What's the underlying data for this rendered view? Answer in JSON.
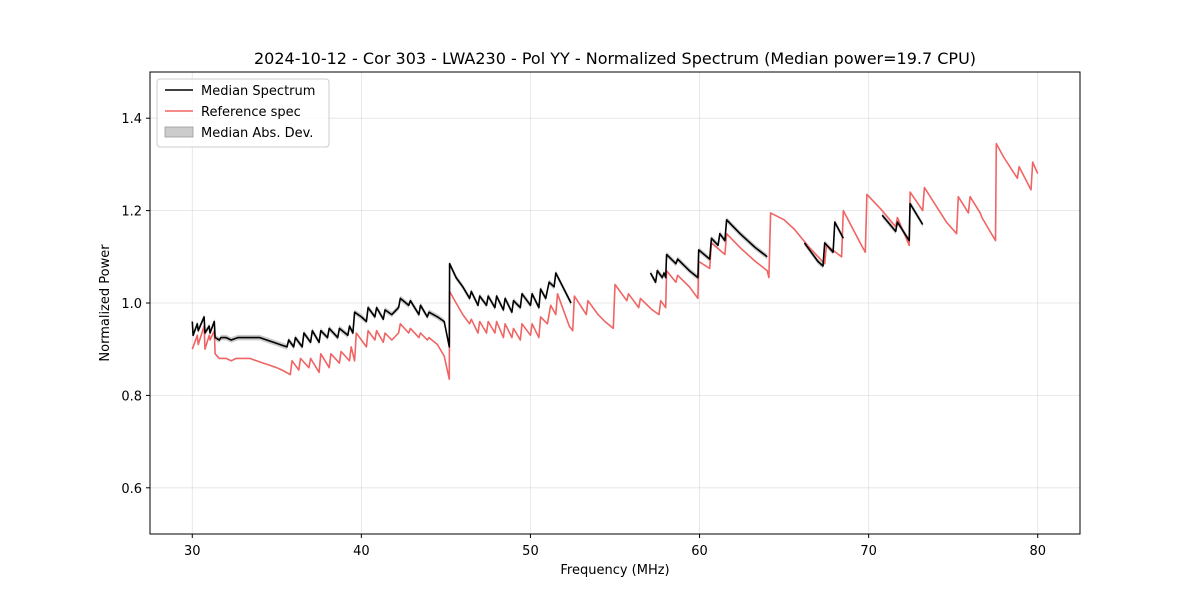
{
  "chart_data": {
    "type": "line",
    "title": "2024-10-12 - Cor 303 - LWA230 - Pol YY - Normalized Spectrum (Median power=19.7 CPU)",
    "xlabel": "Frequency (MHz)",
    "ylabel": "Normalized Power",
    "xlim": [
      27.5,
      82.5
    ],
    "ylim": [
      0.5,
      1.5
    ],
    "xticks": [
      30,
      40,
      50,
      60,
      70,
      80
    ],
    "yticks": [
      0.6,
      0.8,
      1.0,
      1.2,
      1.4
    ],
    "xtick_labels": [
      "30",
      "40",
      "50",
      "60",
      "70",
      "80"
    ],
    "ytick_labels": [
      "0.6",
      "0.8",
      "1.0",
      "1.2",
      "1.4"
    ],
    "grid": true,
    "legend_position": "top-left",
    "legend": [
      {
        "label": "Median Spectrum",
        "kind": "line",
        "color": "#000000"
      },
      {
        "label": "Reference spec",
        "kind": "line",
        "color": "#f06464"
      },
      {
        "label": "Median Abs. Dev.",
        "kind": "patch",
        "color": "#cccccc"
      }
    ],
    "series": [
      {
        "name": "Reference spec",
        "color": "#f06464",
        "segments": [
          [
            [
              30.0,
              0.9
            ],
            [
              30.3,
              0.93
            ],
            [
              30.35,
              0.91
            ],
            [
              30.7,
              0.95
            ],
            [
              30.75,
              0.9
            ],
            [
              31.0,
              0.93
            ],
            [
              31.05,
              0.92
            ],
            [
              31.3,
              0.94
            ],
            [
              31.35,
              0.89
            ],
            [
              31.6,
              0.88
            ],
            [
              31.7,
              0.88
            ],
            [
              32.0,
              0.88
            ],
            [
              32.3,
              0.875
            ],
            [
              32.6,
              0.88
            ],
            [
              33.0,
              0.88
            ],
            [
              33.4,
              0.88
            ],
            [
              33.8,
              0.875
            ],
            [
              34.2,
              0.87
            ],
            [
              34.6,
              0.865
            ],
            [
              35.0,
              0.86
            ],
            [
              35.3,
              0.855
            ],
            [
              35.8,
              0.845
            ],
            [
              35.9,
              0.875
            ],
            [
              36.3,
              0.855
            ],
            [
              36.4,
              0.88
            ],
            [
              36.9,
              0.86
            ],
            [
              37.0,
              0.88
            ],
            [
              37.5,
              0.85
            ],
            [
              37.6,
              0.89
            ],
            [
              38.1,
              0.86
            ],
            [
              38.2,
              0.89
            ],
            [
              38.7,
              0.87
            ],
            [
              38.8,
              0.895
            ],
            [
              39.3,
              0.875
            ],
            [
              39.4,
              0.905
            ],
            [
              39.6,
              0.875
            ],
            [
              39.7,
              0.935
            ],
            [
              40.0,
              0.92
            ],
            [
              40.3,
              0.905
            ],
            [
              40.4,
              0.94
            ],
            [
              40.8,
              0.92
            ],
            [
              40.9,
              0.94
            ],
            [
              41.3,
              0.915
            ],
            [
              41.4,
              0.935
            ],
            [
              41.8,
              0.92
            ],
            [
              42.2,
              0.935
            ],
            [
              42.3,
              0.955
            ],
            [
              42.8,
              0.935
            ],
            [
              42.9,
              0.945
            ],
            [
              43.4,
              0.925
            ],
            [
              43.5,
              0.935
            ],
            [
              43.9,
              0.92
            ],
            [
              44.0,
              0.925
            ],
            [
              44.5,
              0.91
            ],
            [
              44.9,
              0.885
            ],
            [
              45.2,
              0.835
            ],
            [
              45.22,
              1.025
            ],
            [
              45.6,
              1.0
            ],
            [
              46.0,
              0.975
            ],
            [
              46.4,
              0.955
            ],
            [
              46.5,
              0.965
            ],
            [
              46.9,
              0.935
            ],
            [
              47.0,
              0.96
            ],
            [
              47.4,
              0.935
            ],
            [
              47.5,
              0.96
            ],
            [
              47.9,
              0.935
            ],
            [
              48.0,
              0.96
            ],
            [
              48.4,
              0.925
            ],
            [
              48.5,
              0.955
            ],
            [
              48.9,
              0.925
            ],
            [
              49.0,
              0.945
            ],
            [
              49.4,
              0.92
            ],
            [
              49.5,
              0.955
            ],
            [
              50.0,
              0.93
            ],
            [
              50.1,
              0.955
            ],
            [
              50.5,
              0.925
            ],
            [
              50.6,
              0.97
            ],
            [
              51.0,
              0.955
            ],
            [
              51.2,
              0.995
            ],
            [
              51.5,
              0.975
            ],
            [
              51.6,
              1.02
            ],
            [
              52.3,
              0.95
            ],
            [
              52.5,
              0.94
            ],
            [
              52.6,
              1.015
            ],
            [
              53.3,
              0.975
            ],
            [
              53.4,
              1.005
            ],
            [
              54.0,
              0.975
            ],
            [
              54.4,
              0.96
            ],
            [
              54.9,
              0.945
            ],
            [
              55.0,
              1.04
            ],
            [
              55.7,
              1.005
            ],
            [
              55.8,
              1.02
            ],
            [
              56.4,
              0.99
            ],
            [
              56.5,
              1.01
            ],
            [
              57.2,
              0.985
            ],
            [
              57.6,
              0.975
            ],
            [
              57.7,
              1.005
            ],
            [
              58.0,
              0.99
            ],
            [
              58.05,
              1.07
            ],
            [
              58.6,
              1.045
            ],
            [
              58.7,
              1.06
            ],
            [
              59.4,
              1.035
            ],
            [
              59.9,
              1.01
            ],
            [
              59.95,
              1.09
            ],
            [
              60.6,
              1.075
            ],
            [
              60.7,
              1.13
            ],
            [
              61.5,
              1.105
            ],
            [
              61.6,
              1.15
            ],
            [
              62.4,
              1.12
            ],
            [
              63.3,
              1.09
            ],
            [
              64.0,
              1.07
            ],
            [
              64.1,
              1.055
            ],
            [
              64.2,
              1.195
            ],
            [
              65.0,
              1.18
            ],
            [
              65.6,
              1.16
            ],
            [
              66.5,
              1.12
            ],
            [
              67.4,
              1.085
            ],
            [
              67.5,
              1.125
            ],
            [
              68.4,
              1.1
            ],
            [
              68.5,
              1.2
            ],
            [
              69.5,
              1.13
            ],
            [
              69.8,
              1.11
            ],
            [
              69.9,
              1.235
            ],
            [
              70.8,
              1.2
            ],
            [
              71.6,
              1.165
            ],
            [
              71.7,
              1.185
            ],
            [
              72.4,
              1.125
            ],
            [
              72.45,
              1.24
            ],
            [
              73.2,
              1.2
            ],
            [
              73.3,
              1.25
            ],
            [
              74.6,
              1.175
            ],
            [
              75.2,
              1.15
            ],
            [
              75.3,
              1.23
            ],
            [
              75.9,
              1.195
            ],
            [
              76.0,
              1.23
            ],
            [
              76.6,
              1.195
            ],
            [
              76.7,
              1.185
            ],
            [
              77.5,
              1.135
            ],
            [
              77.55,
              1.345
            ],
            [
              78.0,
              1.315
            ],
            [
              78.8,
              1.27
            ],
            [
              78.9,
              1.295
            ],
            [
              79.6,
              1.245
            ],
            [
              79.7,
              1.305
            ],
            [
              80.0,
              1.28
            ]
          ]
        ]
      },
      {
        "name": "Median Spectrum",
        "color": "#000000",
        "segments": [
          [
            [
              30.0,
              0.96
            ],
            [
              30.05,
              0.93
            ],
            [
              30.3,
              0.955
            ],
            [
              30.35,
              0.94
            ],
            [
              30.7,
              0.97
            ],
            [
              30.75,
              0.935
            ],
            [
              31.0,
              0.95
            ],
            [
              31.05,
              0.935
            ],
            [
              31.3,
              0.96
            ],
            [
              31.35,
              0.925
            ],
            [
              31.6,
              0.92
            ],
            [
              31.7,
              0.925
            ],
            [
              32.0,
              0.925
            ],
            [
              32.3,
              0.92
            ],
            [
              32.7,
              0.925
            ],
            [
              33.2,
              0.925
            ],
            [
              33.6,
              0.925
            ],
            [
              34.0,
              0.925
            ],
            [
              34.4,
              0.92
            ],
            [
              34.8,
              0.915
            ],
            [
              35.2,
              0.91
            ],
            [
              35.6,
              0.905
            ],
            [
              35.7,
              0.92
            ],
            [
              36.0,
              0.905
            ],
            [
              36.1,
              0.925
            ],
            [
              36.5,
              0.905
            ],
            [
              36.6,
              0.935
            ],
            [
              37.0,
              0.915
            ],
            [
              37.1,
              0.94
            ],
            [
              37.5,
              0.915
            ],
            [
              37.6,
              0.94
            ],
            [
              38.0,
              0.925
            ],
            [
              38.1,
              0.945
            ],
            [
              38.6,
              0.925
            ],
            [
              38.7,
              0.945
            ],
            [
              39.2,
              0.93
            ],
            [
              39.3,
              0.95
            ],
            [
              39.5,
              0.935
            ],
            [
              39.6,
              0.98
            ],
            [
              40.0,
              0.97
            ],
            [
              40.3,
              0.96
            ],
            [
              40.4,
              0.99
            ],
            [
              40.8,
              0.97
            ],
            [
              40.9,
              0.99
            ],
            [
              41.3,
              0.965
            ],
            [
              41.4,
              0.985
            ],
            [
              41.8,
              0.975
            ],
            [
              42.2,
              0.99
            ],
            [
              42.3,
              1.01
            ],
            [
              42.8,
              0.995
            ],
            [
              42.9,
              1.005
            ],
            [
              43.4,
              0.975
            ],
            [
              43.5,
              0.995
            ],
            [
              43.9,
              0.97
            ],
            [
              44.0,
              0.98
            ],
            [
              44.5,
              0.97
            ],
            [
              44.9,
              0.96
            ],
            [
              45.2,
              0.905
            ],
            [
              45.22,
              1.085
            ],
            [
              45.6,
              1.055
            ],
            [
              46.0,
              1.035
            ],
            [
              46.4,
              1.01
            ],
            [
              46.5,
              1.025
            ],
            [
              46.9,
              0.995
            ],
            [
              47.0,
              1.015
            ],
            [
              47.4,
              0.995
            ],
            [
              47.5,
              1.015
            ],
            [
              47.9,
              0.99
            ],
            [
              48.0,
              1.015
            ],
            [
              48.4,
              0.985
            ],
            [
              48.5,
              1.01
            ],
            [
              48.9,
              0.98
            ],
            [
              49.0,
              1.005
            ],
            [
              49.4,
              0.99
            ],
            [
              49.5,
              1.02
            ],
            [
              50.0,
              0.995
            ],
            [
              50.1,
              1.02
            ],
            [
              50.5,
              0.99
            ],
            [
              50.6,
              1.03
            ],
            [
              50.9,
              1.01
            ],
            [
              51.1,
              1.045
            ],
            [
              51.4,
              1.035
            ],
            [
              51.5,
              1.065
            ],
            [
              52.4,
              1.0
            ]
          ],
          [
            [
              57.1,
              1.065
            ],
            [
              57.4,
              1.045
            ],
            [
              57.5,
              1.07
            ],
            [
              57.8,
              1.055
            ],
            [
              57.9,
              1.065
            ],
            [
              58.0,
              1.055
            ],
            [
              58.05,
              1.105
            ],
            [
              58.6,
              1.085
            ],
            [
              58.7,
              1.095
            ],
            [
              59.4,
              1.07
            ],
            [
              59.9,
              1.055
            ],
            [
              59.95,
              1.115
            ],
            [
              60.6,
              1.095
            ],
            [
              60.7,
              1.14
            ],
            [
              61.1,
              1.125
            ],
            [
              61.2,
              1.15
            ],
            [
              61.5,
              1.135
            ],
            [
              61.6,
              1.18
            ],
            [
              62.4,
              1.15
            ],
            [
              63.3,
              1.12
            ],
            [
              64.0,
              1.1
            ]
          ],
          [
            [
              66.2,
              1.13
            ],
            [
              67.0,
              1.09
            ],
            [
              67.3,
              1.08
            ],
            [
              67.4,
              1.13
            ],
            [
              67.9,
              1.11
            ],
            [
              68.0,
              1.175
            ],
            [
              68.5,
              1.14
            ]
          ],
          [
            [
              70.8,
              1.19
            ],
            [
              71.6,
              1.155
            ],
            [
              71.7,
              1.175
            ],
            [
              72.4,
              1.135
            ],
            [
              72.45,
              1.215
            ],
            [
              73.2,
              1.17
            ]
          ]
        ]
      }
    ],
    "mad_band": {
      "name": "Median Abs. Dev.",
      "color": "#bdbdbd",
      "half_width": 0.006
    }
  }
}
